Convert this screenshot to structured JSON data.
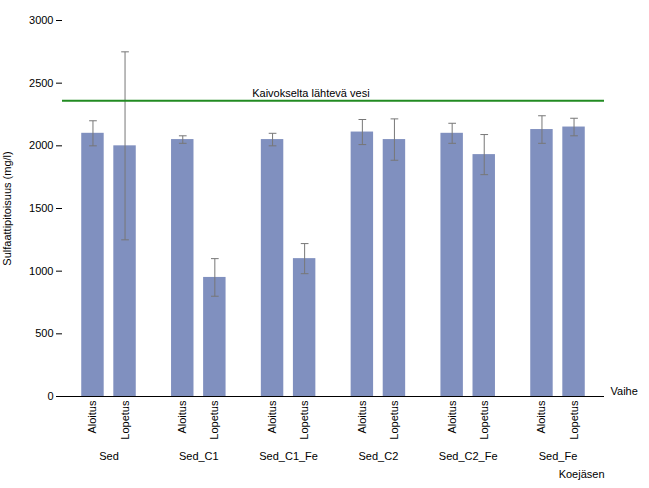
{
  "chart_data": {
    "type": "bar",
    "ylabel": "Sulfaattipitoisuus (mg/l)",
    "xlabel": "Vaihe",
    "group_label": "Koejäsen",
    "categories": [
      "Sed",
      "Sed_C1",
      "Sed_C1_Fe",
      "Sed_C2",
      "Sed_C2_Fe",
      "Sed_Fe"
    ],
    "series": [
      {
        "name": "Aloitus",
        "color": "#8090bf",
        "values": [
          2100,
          2050,
          2050,
          2110,
          2100,
          2130
        ],
        "errors": [
          100,
          30,
          50,
          100,
          80,
          110
        ]
      },
      {
        "name": "Lopetus",
        "color": "#8090bf",
        "values": [
          2000,
          950,
          1100,
          2050,
          1930,
          2150
        ],
        "errors": [
          750,
          150,
          120,
          165,
          160,
          70
        ]
      }
    ],
    "reference_line": {
      "y": 2360,
      "label": "Kaivokselta lähtevä vesi",
      "color": "#228B22"
    },
    "ylim": [
      0,
      3000
    ],
    "yticks": [
      0,
      500,
      1000,
      1500,
      2000,
      2500,
      3000
    ],
    "grid": false
  }
}
